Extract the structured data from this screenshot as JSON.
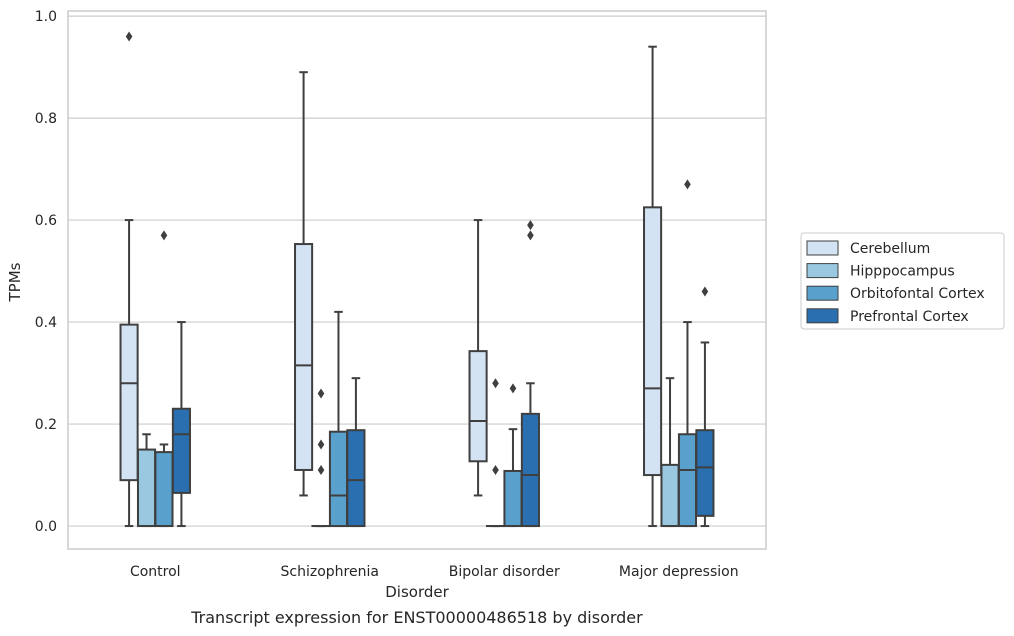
{
  "chart_data": {
    "type": "box",
    "caption": "Transcript expression for ENST00000486518 by disorder",
    "xlabel": "Disorder",
    "ylabel": "TPMs",
    "ylim": [
      -0.045,
      1.01
    ],
    "yticks": [
      0.0,
      0.2,
      0.4,
      0.6,
      0.8,
      1.0
    ],
    "ytick_labels": [
      "0.0",
      "0.2",
      "0.4",
      "0.6",
      "0.8",
      "1.0"
    ],
    "grid": "horizontal",
    "legend_position": "right",
    "categories": [
      "Control",
      "Schizophrenia",
      "Bipolar disorder",
      "Major depression"
    ],
    "series": [
      {
        "name": "Cerebellum",
        "color": "#d3e3f3",
        "boxes": [
          {
            "whislo": 0.0,
            "q1": 0.09,
            "med": 0.28,
            "q3": 0.395,
            "whishi": 0.6,
            "fliers": [
              0.96
            ]
          },
          {
            "whislo": 0.06,
            "q1": 0.11,
            "med": 0.315,
            "q3": 0.553,
            "whishi": 0.89,
            "fliers": []
          },
          {
            "whislo": 0.06,
            "q1": 0.127,
            "med": 0.206,
            "q3": 0.343,
            "whishi": 0.6,
            "fliers": []
          },
          {
            "whislo": 0.0,
            "q1": 0.1,
            "med": 0.27,
            "q3": 0.625,
            "whishi": 0.94,
            "fliers": []
          }
        ]
      },
      {
        "name": "Hipppocampus",
        "color": "#9ac8e0",
        "boxes": [
          {
            "whislo": 0.0,
            "q1": 0.0,
            "med": 0.0,
            "q3": 0.15,
            "whishi": 0.18,
            "fliers": []
          },
          {
            "whislo": 0.0,
            "q1": 0.0,
            "med": 0.0,
            "q3": 0.0,
            "whishi": 0.0,
            "fliers": [
              0.11,
              0.16,
              0.26
            ]
          },
          {
            "whislo": 0.0,
            "q1": 0.0,
            "med": 0.0,
            "q3": 0.0,
            "whishi": 0.0,
            "fliers": [
              0.11,
              0.28
            ]
          },
          {
            "whislo": 0.0,
            "q1": 0.0,
            "med": 0.0,
            "q3": 0.12,
            "whishi": 0.29,
            "fliers": []
          }
        ]
      },
      {
        "name": "Orbitofontal Cortex",
        "color": "#5aa0cd",
        "boxes": [
          {
            "whislo": 0.0,
            "q1": 0.0,
            "med": 0.0,
            "q3": 0.145,
            "whishi": 0.16,
            "fliers": [
              0.57
            ]
          },
          {
            "whislo": 0.0,
            "q1": 0.0,
            "med": 0.06,
            "q3": 0.185,
            "whishi": 0.42,
            "fliers": []
          },
          {
            "whislo": 0.0,
            "q1": 0.0,
            "med": 0.0,
            "q3": 0.108,
            "whishi": 0.19,
            "fliers": [
              0.27
            ]
          },
          {
            "whislo": 0.0,
            "q1": 0.0,
            "med": 0.11,
            "q3": 0.18,
            "whishi": 0.4,
            "fliers": [
              0.67
            ]
          }
        ]
      },
      {
        "name": "Prefrontal Cortex",
        "color": "#2a6fb0",
        "boxes": [
          {
            "whislo": 0.0,
            "q1": 0.065,
            "med": 0.18,
            "q3": 0.23,
            "whishi": 0.4,
            "fliers": []
          },
          {
            "whislo": 0.0,
            "q1": 0.0,
            "med": 0.09,
            "q3": 0.188,
            "whishi": 0.29,
            "fliers": []
          },
          {
            "whislo": 0.0,
            "q1": 0.0,
            "med": 0.1,
            "q3": 0.22,
            "whishi": 0.28,
            "fliers": [
              0.57,
              0.59
            ]
          },
          {
            "whislo": 0.0,
            "q1": 0.02,
            "med": 0.115,
            "q3": 0.188,
            "whishi": 0.36,
            "fliers": [
              0.46
            ]
          }
        ]
      }
    ],
    "colors": {
      "box_edge": "#3f3f3f",
      "grid": "#cccccc",
      "frame": "#cccccc"
    }
  }
}
